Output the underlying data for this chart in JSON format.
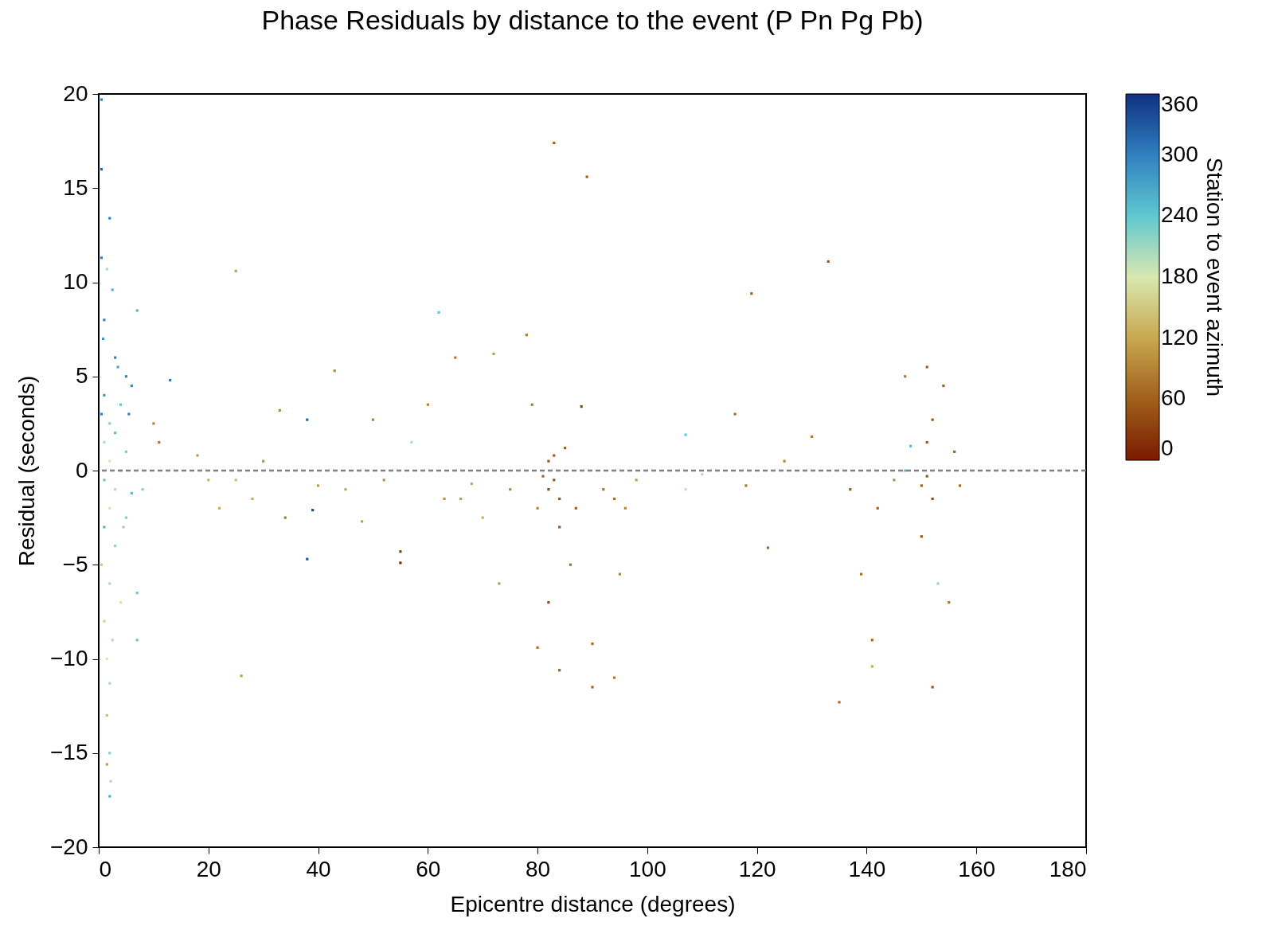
{
  "chart_data": {
    "type": "scatter",
    "title": "Phase Residuals by distance to the event (P Pn Pg Pb)",
    "xlabel": "Epicentre distance (degrees)",
    "ylabel": "Residual (seconds)",
    "clabel": "Station to event azimuth",
    "xlim": [
      0,
      180
    ],
    "xticks": [
      0,
      20,
      40,
      60,
      80,
      100,
      120,
      140,
      160,
      180
    ],
    "ylim": [
      -20,
      20
    ],
    "yticks": [
      -20,
      -15,
      -10,
      -5,
      0,
      5,
      10,
      15,
      20
    ],
    "clim": [
      0,
      360
    ],
    "cticks": [
      0,
      60,
      120,
      180,
      240,
      300,
      360
    ],
    "grid": false,
    "marker": "square",
    "ref_lines": [
      {
        "axis": "y",
        "value": 0,
        "color": "#808080",
        "line_style": "dashed"
      }
    ],
    "series": [
      {
        "x": [
          0.5,
          0.5,
          2,
          0.5,
          1.5,
          2.5,
          7,
          1,
          0.8,
          3,
          5,
          6,
          4,
          2,
          3,
          1,
          5,
          2,
          4,
          1,
          3,
          6,
          2,
          5,
          1,
          3,
          0.5,
          2,
          4,
          1,
          2.5,
          1.5,
          2,
          1.5,
          2,
          2.2,
          2,
          1.5,
          7,
          7,
          0.5,
          1,
          3.5,
          5.5,
          4.5,
          8,
          13,
          10,
          11,
          20,
          18,
          22,
          25,
          26,
          25,
          28,
          30,
          33,
          34,
          38,
          39,
          38,
          40,
          43,
          45,
          48,
          50,
          52,
          55,
          55,
          57,
          60,
          62,
          63,
          65,
          66,
          68,
          70,
          72,
          73,
          75,
          78,
          79,
          80,
          80,
          81,
          82,
          82,
          83,
          83,
          84,
          83,
          84,
          85,
          82,
          84,
          86,
          87,
          88,
          89,
          90,
          90,
          92,
          94,
          94,
          95,
          96,
          98,
          107,
          107,
          110,
          116,
          118,
          119,
          122,
          125,
          130,
          133,
          135,
          137,
          139,
          141,
          141,
          142,
          145,
          147,
          147,
          148,
          150,
          151,
          151,
          152,
          152,
          152,
          151,
          153,
          154,
          155,
          157,
          156,
          150
        ],
        "values": [
          19.7,
          16,
          13.4,
          11.3,
          10.7,
          9.6,
          8.5,
          8,
          7,
          6,
          5,
          4.5,
          3.5,
          2.5,
          2,
          1.5,
          1,
          0.5,
          0,
          -0.5,
          -1,
          -1.2,
          -2,
          -2.5,
          -3,
          -4,
          -5,
          -6,
          -7,
          -8,
          -9,
          -10,
          -11.3,
          -13,
          -15,
          -16.5,
          -17.3,
          -15.6,
          -6.5,
          -9,
          3,
          4,
          5.5,
          3,
          -3,
          -1,
          4.8,
          2.5,
          1.5,
          -0.5,
          0.8,
          -2,
          10.6,
          -10.9,
          -0.5,
          -1.5,
          0.5,
          3.2,
          -2.5,
          2.7,
          -2.1,
          -4.7,
          -0.8,
          5.3,
          -1,
          -2.7,
          2.7,
          -0.5,
          -4.3,
          -4.9,
          1.5,
          3.5,
          8.4,
          -1.5,
          6,
          -1.5,
          -0.7,
          -2.5,
          6.2,
          -6,
          -1,
          7.2,
          3.5,
          -2,
          -9.4,
          -0.3,
          0.5,
          -1,
          0.8,
          -0.5,
          -1.5,
          17.4,
          -3,
          1.2,
          -7,
          -10.6,
          -5,
          -2,
          3.4,
          15.6,
          -11.5,
          -9.2,
          -1,
          -1.5,
          -11,
          -5.5,
          -2,
          -0.5,
          1.9,
          -1,
          -0.2,
          3,
          -0.8,
          9.4,
          -4.1,
          0.5,
          1.8,
          11.1,
          -12.3,
          -1,
          -5.5,
          -9,
          -10.4,
          -2,
          -0.5,
          0,
          5,
          1.3,
          -0.8,
          -0.3,
          1.5,
          -1.5,
          2.7,
          -11.5,
          5.5,
          -6,
          4.5,
          -7,
          -0.8,
          1,
          -3.5
        ],
        "cvalues": [
          300,
          320,
          300,
          300,
          200,
          260,
          260,
          300,
          280,
          300,
          300,
          290,
          240,
          220,
          250,
          200,
          230,
          180,
          210,
          240,
          200,
          250,
          180,
          230,
          260,
          220,
          150,
          200,
          180,
          160,
          200,
          180,
          200,
          140,
          220,
          200,
          260,
          110,
          240,
          240,
          300,
          280,
          270,
          300,
          210,
          220,
          300,
          90,
          80,
          130,
          110,
          120,
          110,
          110,
          140,
          120,
          100,
          90,
          80,
          320,
          340,
          330,
          110,
          90,
          120,
          110,
          90,
          100,
          30,
          10,
          200,
          90,
          240,
          100,
          80,
          110,
          120,
          130,
          110,
          110,
          100,
          80,
          80,
          90,
          70,
          60,
          50,
          40,
          55,
          45,
          50,
          60,
          50,
          60,
          40,
          60,
          70,
          60,
          30,
          60,
          60,
          70,
          80,
          70,
          80,
          90,
          90,
          110,
          240,
          190,
          200,
          70,
          80,
          60,
          70,
          90,
          80,
          50,
          70,
          60,
          70,
          60,
          120,
          60,
          100,
          240,
          80,
          250,
          60,
          50,
          55,
          40,
          50,
          50,
          60,
          210,
          60,
          80,
          70,
          60,
          50
        ]
      }
    ]
  }
}
